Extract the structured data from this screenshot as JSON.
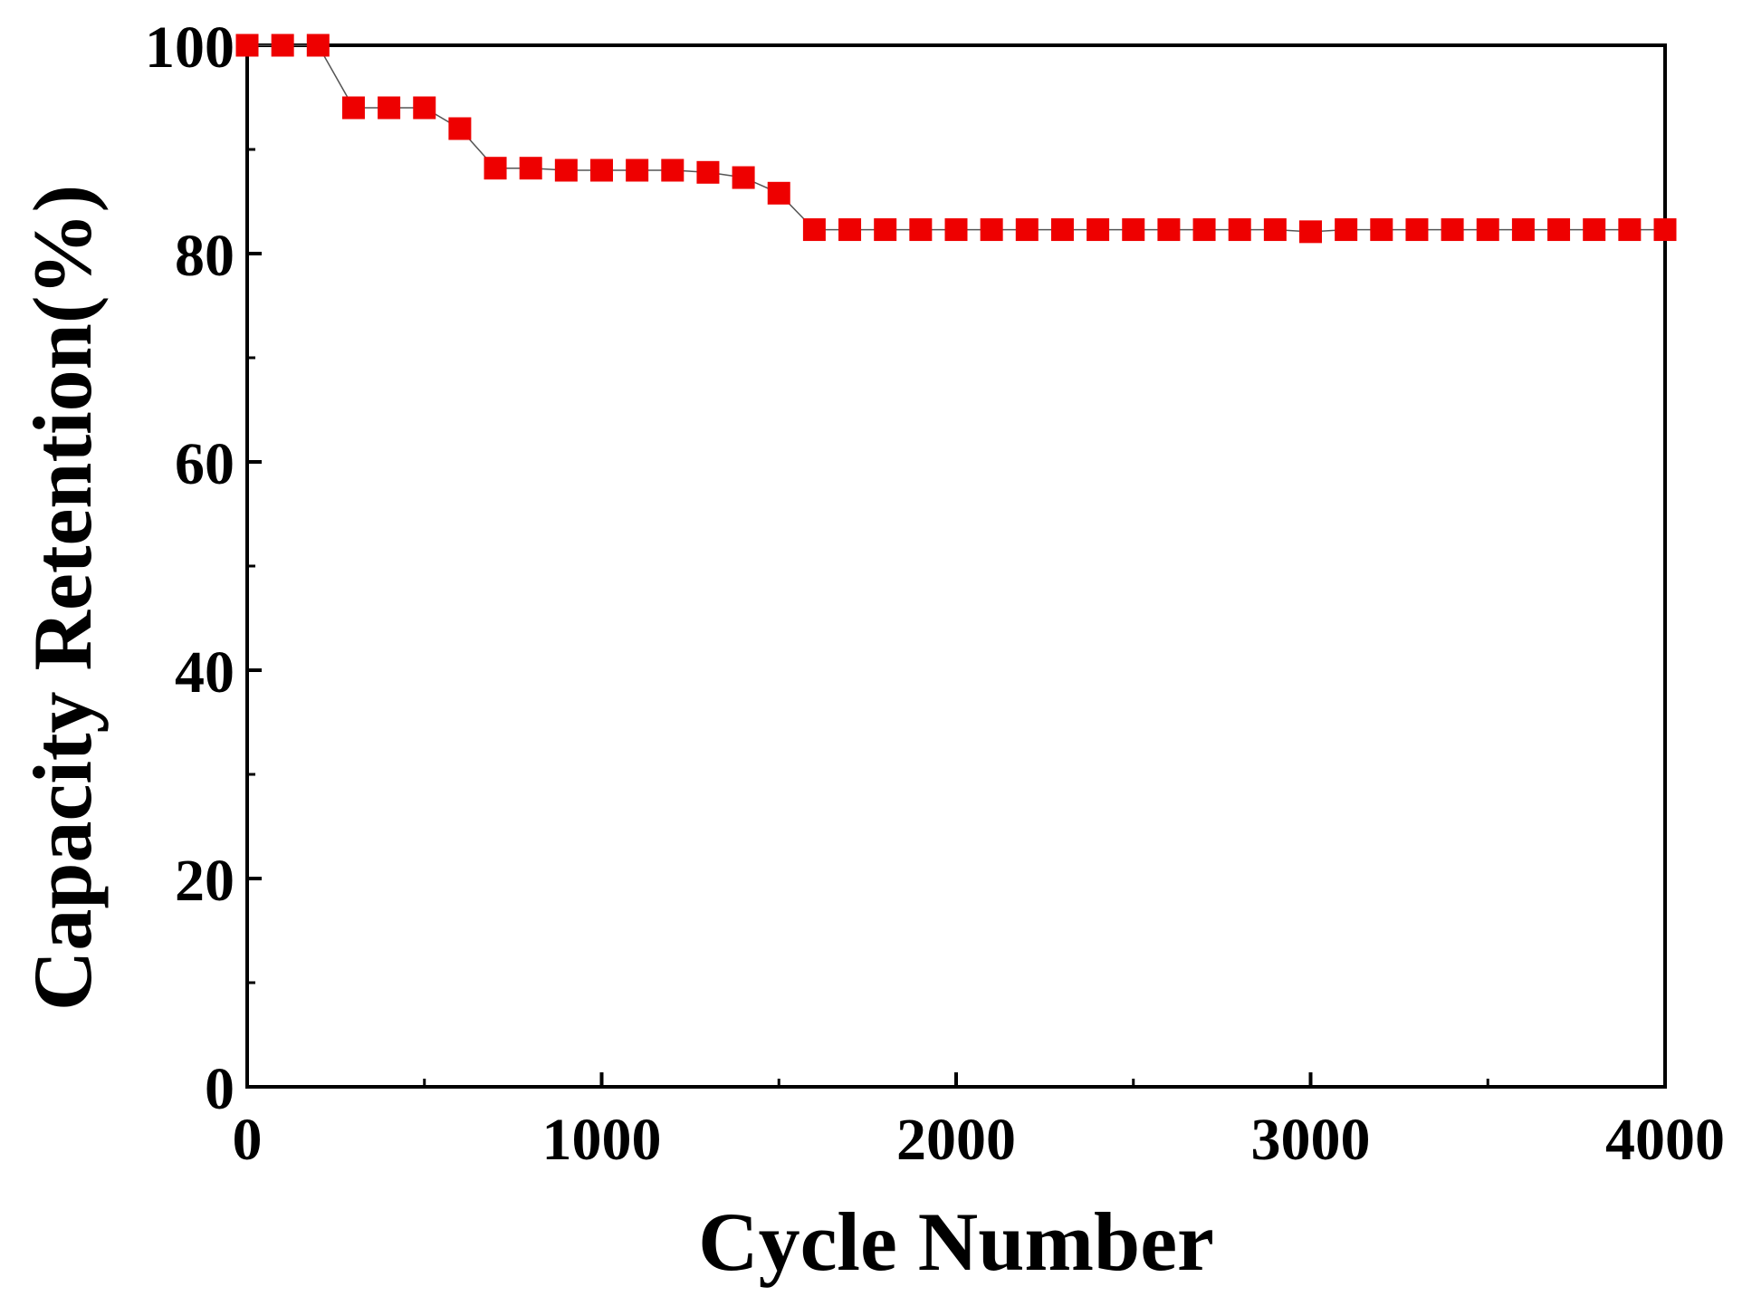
{
  "chart_data": {
    "type": "scatter",
    "title": "",
    "xlabel": "Cycle Number",
    "ylabel": "Capacity Retention(%)",
    "xlim": [
      0,
      4000
    ],
    "ylim": [
      0,
      100
    ],
    "x_ticks": [
      "0",
      "1000",
      "2000",
      "3000",
      "4000"
    ],
    "y_ticks": [
      "0",
      "20",
      "40",
      "60",
      "80",
      "100"
    ],
    "x_tick_values": [
      0,
      1000,
      2000,
      3000,
      4000
    ],
    "y_tick_values": [
      0,
      20,
      40,
      60,
      80,
      100
    ],
    "x_minor_tick_values": [
      500,
      1500,
      2500,
      3500
    ],
    "y_minor_tick_values": [
      10,
      30,
      50,
      70,
      90
    ],
    "grid": false,
    "legend": "none",
    "series": [
      {
        "name": "Capacity Retention",
        "marker": "square",
        "color": "#ee0000",
        "line_color": "#555555",
        "x": [
          0,
          100,
          200,
          300,
          400,
          500,
          600,
          700,
          800,
          900,
          1000,
          1100,
          1200,
          1300,
          1400,
          1500,
          1600,
          1700,
          1800,
          1900,
          2000,
          2100,
          2200,
          2300,
          2400,
          2500,
          2600,
          2700,
          2800,
          2900,
          3000,
          3100,
          3200,
          3300,
          3400,
          3500,
          3600,
          3700,
          3800,
          3900,
          4000
        ],
        "y": [
          100,
          100,
          100,
          94,
          94,
          94,
          92,
          88.2,
          88.2,
          88,
          88,
          88,
          88,
          87.8,
          87.3,
          85.8,
          82.3,
          82.3,
          82.3,
          82.3,
          82.3,
          82.3,
          82.3,
          82.3,
          82.3,
          82.3,
          82.3,
          82.3,
          82.3,
          82.3,
          82.1,
          82.3,
          82.3,
          82.3,
          82.3,
          82.3,
          82.3,
          82.3,
          82.3,
          82.3,
          82.3
        ]
      }
    ]
  }
}
